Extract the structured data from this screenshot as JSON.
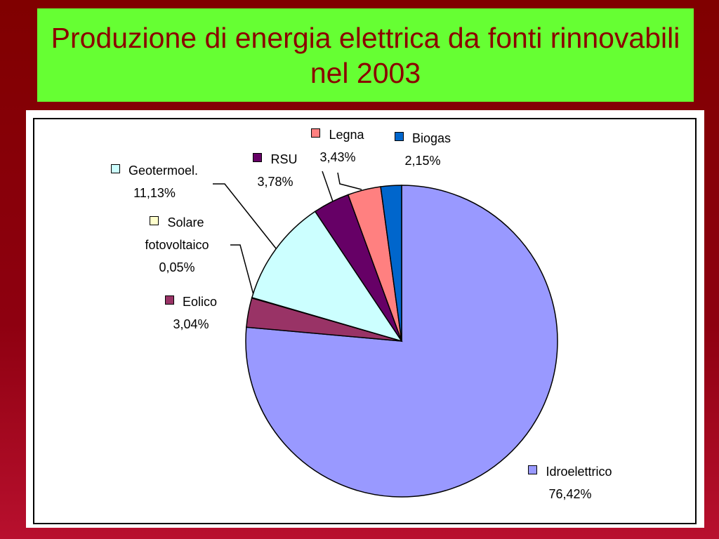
{
  "chart_data": {
    "type": "pie",
    "title": "Produzione di energia elettrica da fonti rinnovabili nel 2003",
    "categories": [
      "Idroelettrico",
      "Eolico",
      "Solare fotovoltaico",
      "Geotermoel.",
      "RSU",
      "Legna",
      "Biogas"
    ],
    "values": [
      76.42,
      3.04,
      0.05,
      11.13,
      3.78,
      3.43,
      2.15
    ],
    "value_labels": [
      "76,42%",
      "3,04%",
      "0,05%",
      "11,13%",
      "3,78%",
      "3,43%",
      "2,15%"
    ],
    "colors": [
      "#9999ff",
      "#993366",
      "#ffffcc",
      "#ccffff",
      "#660066",
      "#ff8080",
      "#0066cc"
    ]
  }
}
